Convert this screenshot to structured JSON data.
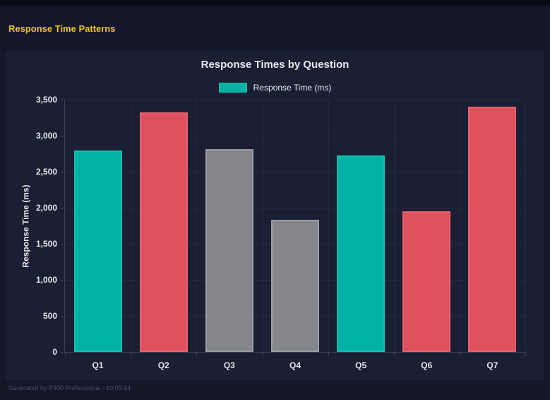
{
  "page": {
    "title": "Response Time Patterns",
    "footer": "Generated by P300 Professional - 10:05:14"
  },
  "chart": {
    "title": "Response Times by Question",
    "legend_label": "Response Time (ms)",
    "y_axis_title": "Response Time (ms)"
  },
  "chart_data": {
    "type": "bar",
    "title": "Response Times by Question",
    "categories": [
      "Q1",
      "Q2",
      "Q3",
      "Q4",
      "Q5",
      "Q6",
      "Q7"
    ],
    "values": [
      2790,
      3320,
      2810,
      1830,
      2730,
      1950,
      3400
    ],
    "bar_colors": [
      "#00b2a3",
      "#e0515e",
      "#85868c",
      "#85868c",
      "#00b2a3",
      "#e0515e",
      "#e0515e"
    ],
    "bar_border_colors": [
      "#12c1b2",
      "#e8626e",
      "#9a9ca4",
      "#9a9ca4",
      "#12c1b2",
      "#e8626e",
      "#e8626e"
    ],
    "xlabel": "",
    "ylabel": "Response Time (ms)",
    "ylim": [
      0,
      3500
    ],
    "ytick_step": 500,
    "ytick_labels": [
      "0",
      "500",
      "1,000",
      "1,500",
      "2,000",
      "2,500",
      "3,000",
      "3,500"
    ],
    "legend": [
      "Response Time (ms)"
    ],
    "legend_position": "top",
    "grid": true
  },
  "colors": {
    "teal": "#00b2a3",
    "red": "#e0515e",
    "gray": "#85868c",
    "accent_yellow": "#f0c41d",
    "page_background": "#14172a",
    "panel_background": "#1b1f33",
    "grid_line": "#262b40",
    "tick_text": "#e2e4ea",
    "footer_text": "#4b5066"
  }
}
